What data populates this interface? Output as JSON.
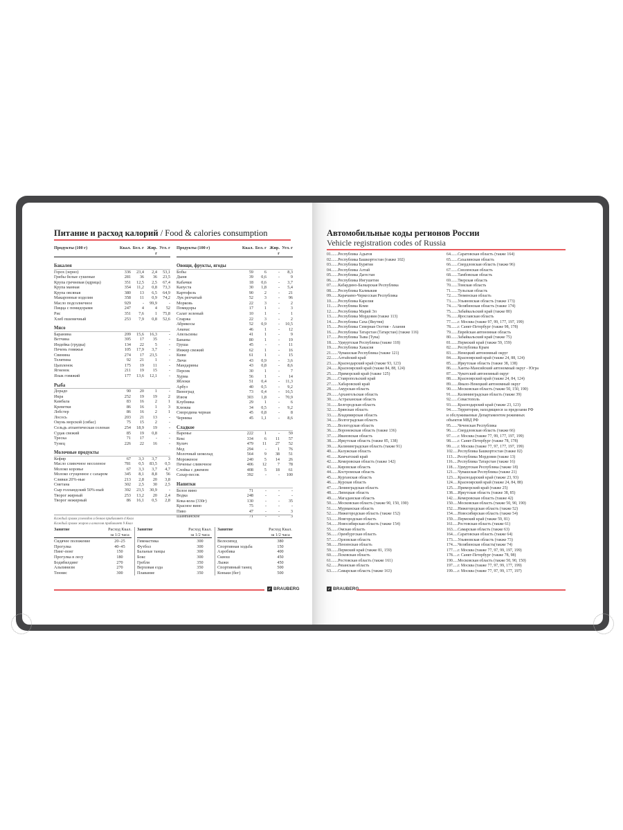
{
  "left_page": {
    "title": "Питание и расход калорий",
    "title_en": "/ Food & calories consumption",
    "columns": [
      "Продукты (100 г)",
      "Ккал.",
      "Бел. г",
      "Жир. г",
      "Угл. г"
    ],
    "col1": [
      {
        "section": "Бакалея",
        "rows": [
          [
            "Горох (зерно)",
            "336",
            "23,4",
            "2,4",
            "53,1"
          ],
          [
            "Грибы белые сушеные",
            "281",
            "36",
            "36",
            "23,5"
          ],
          [
            "Крупа гречневая (ядрица)",
            "351",
            "12,5",
            "2,5",
            "67,4"
          ],
          [
            "Крупа манная",
            "354",
            "11,2",
            "0,8",
            "73,3"
          ],
          [
            "Крупа овсяная",
            "380",
            "13",
            "6,5",
            "64,9"
          ],
          [
            "Макаронные изделия",
            "358",
            "11",
            "0,9",
            "74,2"
          ],
          [
            "Масло подсолнечное",
            "929",
            "-",
            "99,9",
            "-"
          ],
          [
            "Пицца с помидорами",
            "247",
            "4",
            "4",
            "52"
          ],
          [
            "Рис",
            "351",
            "7,6",
            "1",
            "75,8"
          ],
          [
            "Хлеб пшеничный",
            "253",
            "7,9",
            "0,8",
            "52,6"
          ]
        ]
      },
      {
        "section": "Мясо",
        "rows": [
          [
            "Баранина",
            "209",
            "15,6",
            "16,3",
            "-"
          ],
          [
            "Ветчина",
            "395",
            "17",
            "35",
            "-"
          ],
          [
            "Индейка (грудка)",
            "134",
            "22",
            "5",
            "-"
          ],
          [
            "Печень говяжья",
            "105",
            "17,9",
            "3,7",
            "-"
          ],
          [
            "Свинина",
            "274",
            "17",
            "23,5",
            "-"
          ],
          [
            "Телятина",
            "92",
            "21",
            "1",
            "-"
          ],
          [
            "Цыпленок",
            "175",
            "19",
            "11",
            "-"
          ],
          [
            "Ягненок",
            "211",
            "19",
            "15",
            "-"
          ],
          [
            "Язык говяжий",
            "177",
            "13,6",
            "12,1",
            "-"
          ]
        ]
      },
      {
        "section": "Рыба",
        "rows": [
          [
            "Дорадо",
            "90",
            "20",
            "1",
            "-"
          ],
          [
            "Икра",
            "252",
            "19",
            "19",
            "2"
          ],
          [
            "Камбала",
            "83",
            "16",
            "2",
            "1"
          ],
          [
            "Креветки",
            "86",
            "16",
            "1",
            "3"
          ],
          [
            "Лобстер",
            "86",
            "16",
            "2",
            "1"
          ],
          [
            "Лосось",
            "203",
            "21",
            "13",
            "-"
          ],
          [
            "Окунь морской (сибас)",
            "75",
            "15",
            "2",
            "-"
          ],
          [
            "Сельдь атлантическая соленая",
            "254",
            "18,9",
            "19",
            "-"
          ],
          [
            "Судак свежий",
            "85",
            "19",
            "0,8",
            "-"
          ],
          [
            "Треска",
            "71",
            "17",
            "-",
            "-"
          ],
          [
            "Тунец",
            "226",
            "22",
            "16",
            "-"
          ]
        ]
      },
      {
        "section": "Молочные продукты",
        "rows": [
          [
            "Кефир",
            "67",
            "3,3",
            "3,7",
            "3"
          ],
          [
            "Масло сливочное несоленое",
            "781",
            "0,5",
            "83,5",
            "0,5"
          ],
          [
            "Молоко коровье",
            "67",
            "3,3",
            "3,7",
            "4,7"
          ],
          [
            "Молоко сгущенное с сахаром",
            "345",
            "8,1",
            "8,8",
            "56"
          ],
          [
            "Сливки 20%-ные",
            "213",
            "2,8",
            "20",
            "3,8"
          ],
          [
            "Сметана",
            "302",
            "2,5",
            "30",
            "2,5"
          ],
          [
            "Сыр голландский 50%-ный",
            "392",
            "23,5",
            "30,9",
            "-"
          ],
          [
            "Творог жирный",
            "253",
            "13,2",
            "20",
            "2,4"
          ],
          [
            "Творог нежирный",
            "86",
            "16,1",
            "0,5",
            "2,8"
          ]
        ]
      }
    ],
    "col2": [
      {
        "section": "Овощи, фрукты, ягоды",
        "rows": [
          [
            "Бобы",
            "59",
            "6",
            "-",
            "8,3"
          ],
          [
            "Дыня",
            "39",
            "0,6",
            "-",
            "9"
          ],
          [
            "Кабачки",
            "18",
            "0,6",
            "-",
            "3,7"
          ],
          [
            "Капуста",
            "30",
            "1,8",
            "-",
            "5,4"
          ],
          [
            "Картофель",
            "90",
            "2",
            "-",
            "21"
          ],
          [
            "Лук репчатый",
            "52",
            "3",
            "-",
            "96"
          ],
          [
            "Морковь",
            "22",
            "3",
            "-",
            "2"
          ],
          [
            "Помидоры",
            "17",
            "1",
            "-",
            "3"
          ],
          [
            "Салат зеленый",
            "10",
            "1",
            "-",
            "1"
          ],
          [
            "Спаржа",
            "22",
            "3",
            "-",
            "2"
          ],
          [
            "Абрикосы",
            "52",
            "0,9",
            "-",
            "10,5"
          ],
          [
            "Ананас",
            "46",
            "1",
            "-",
            "12"
          ],
          [
            "Апельсины",
            "41",
            "1",
            "-",
            "9"
          ],
          [
            "Бананы",
            "80",
            "1",
            "-",
            "19"
          ],
          [
            "Груша",
            "45",
            "-",
            "-",
            "11"
          ],
          [
            "Инжир свежий",
            "62",
            "1",
            "-",
            "16"
          ],
          [
            "Киви",
            "61",
            "1",
            "-",
            "15"
          ],
          [
            "Личи",
            "43",
            "0,9",
            "-",
            "3,6"
          ],
          [
            "Мандарины",
            "43",
            "0,8",
            "-",
            "8,6"
          ],
          [
            "Персик",
            "30",
            "1",
            "-",
            "7"
          ],
          [
            "Хурма",
            "56",
            "1",
            "-",
            "14"
          ],
          [
            "Яблоки",
            "51",
            "0,4",
            "-",
            "11,3"
          ],
          [
            "Арбуз",
            "40",
            "0,5",
            "-",
            "9,2"
          ],
          [
            "Виноград",
            "73",
            "0,4",
            "-",
            "16,5"
          ],
          [
            "Изюм",
            "303",
            "1,8",
            "-",
            "70,9"
          ],
          [
            "Клубника",
            "29",
            "1",
            "-",
            "6"
          ],
          [
            "Клюква",
            "34",
            "0,5",
            "-",
            "9,2"
          ],
          [
            "Смородина черная",
            "45",
            "0,8",
            "-",
            "8"
          ],
          [
            "Черника",
            "45",
            "1,1",
            "-",
            "8,6"
          ]
        ]
      },
      {
        "section": "Сладкое",
        "rows": [
          [
            "Варенье",
            "222",
            "1",
            "-",
            "59"
          ],
          [
            "Кекс",
            "334",
            "6",
            "11",
            "57"
          ],
          [
            "Кулич",
            "479",
            "11",
            "27",
            "52"
          ],
          [
            "Мед",
            "294",
            "-",
            "1",
            "76"
          ],
          [
            "Молочный шоколад",
            "564",
            "9",
            "38",
            "51"
          ],
          [
            "Мороженое",
            "240",
            "5",
            "14",
            "26"
          ],
          [
            "Печенье сливочное",
            "406",
            "12",
            "7",
            "78"
          ],
          [
            "Слойка с джемом",
            "408",
            "5",
            "18",
            "61"
          ],
          [
            "Сахар-песок",
            "392",
            "-",
            "-",
            "100"
          ]
        ]
      },
      {
        "section": "Напитки",
        "rows": [
          [
            "Белое вино",
            "71",
            "-",
            "-",
            "-"
          ],
          [
            "Водка",
            "248",
            "-",
            "-",
            "-"
          ],
          [
            "Кока-кола (330г)",
            "130",
            "-",
            "-",
            "35"
          ],
          [
            "Красное вино",
            "75",
            "-",
            "-",
            "-"
          ],
          [
            "Пиво",
            "47",
            "-",
            "-",
            "3"
          ],
          [
            "Шампанское",
            "71",
            "-",
            "-",
            "3"
          ]
        ]
      }
    ],
    "notes": [
      "Каждый грамм углеводов и белков прибавляет 4 Ккал",
      "Каждый грамм жиров и алкоголя прибавляет 9 Ккал"
    ],
    "activity_header": {
      "name": "Занятие",
      "value": "Расход Ккал. за 1/2 часа"
    },
    "activities": [
      [
        [
          "Сидячее положение",
          "20–25"
        ],
        [
          "Прогулка",
          "40–45"
        ],
        [
          "Пинг-понг",
          "150"
        ],
        [
          "Прогулка в лесу",
          "180"
        ],
        [
          "Бодибилдинг",
          "270"
        ],
        [
          "Альпинизм",
          "270"
        ],
        [
          "Теннис",
          "300"
        ]
      ],
      [
        [
          "Гимнастика",
          "300"
        ],
        [
          "Футбол",
          "300"
        ],
        [
          "Бальные танцы",
          "300"
        ],
        [
          "Бокс",
          "300"
        ],
        [
          "Гребля",
          "350"
        ],
        [
          "Верховая езда",
          "350"
        ],
        [
          "Плавание",
          "350"
        ]
      ],
      [
        [
          "Велосипед",
          "380"
        ],
        [
          "Спортивная ходьба",
          "150"
        ],
        [
          "Аэробика",
          "400"
        ],
        [
          "Сквош",
          "450"
        ],
        [
          "Лыжи",
          "450"
        ],
        [
          "Спортивный танец",
          "500"
        ],
        [
          "Коньки (бег)",
          "500"
        ]
      ]
    ],
    "brand": "BRAUBERG"
  },
  "right_page": {
    "title": "Автомобильные коды регионов России",
    "subtitle": "Vehicle registration codes of Russia",
    "codes_col1": [
      "01.......Республика Адыгея",
      "02.......Республика Башкортостан (также 102)",
      "03.......Республика Бурятия",
      "04.......Республика Алтай",
      "05.......Республика Дагестан",
      "06.......Республика Ингушетия",
      "07.......Кабардино-Балкарская Республика",
      "08.......Республика Калмыкия",
      "09.......Карачаево-Черкесская Республика",
      "10.......Республика Карелия",
      "11.......Республика Коми",
      "12.......Республика Марий Эл",
      "13.......Республика Мордовия (также 113)",
      "14.......Республика Саха (Якутия)",
      "15.......Республика Северная Осетия - Алания",
      "16.......Республика Татарстан (Татарстан) (также 116)",
      "17.......Республика Тыва (Тува)",
      "18.......Удмуртская Республика (также 118)",
      "19.......Республика Хакасия",
      "21.......Чувашская Республика (также 121)",
      "22.......Алтайский край",
      "23.......Краснодарский край (также 93, 123)",
      "24.......Красноярский край (также 84, 88, 124)",
      "25.......Приморский край (также 125)",
      "26.......Ставропольский край",
      "27.......Хабаровский край",
      "28.......Амурская область",
      "29.......Архангельская область",
      "30.......Астраханская область",
      "31.......Белгородская область",
      "32.......Брянская область",
      "33.......Владимирская область",
      "34.......Волгоградская область",
      "35.......Вологодская область",
      "36.......Воронежская область (также 136)",
      "37.......Ивановская область",
      "38.......Иркутская область (также 85, 138)",
      "39.......Калининградская область (также 91)",
      "40.......Калужская область",
      "41.......Камчатский край",
      "42.......Кемеровская область (также 142)",
      "43.......Кировская область",
      "44.......Костромская область",
      "45.......Курганская область",
      "46.......Курская область",
      "47.......Ленинградская область",
      "48.......Липецкая область",
      "49.......Магаданская область",
      "50.......Московская область (также 90, 150, 190)",
      "51.......Мурманская область",
      "52.......Нижегородская область (также 152)",
      "53.......Новгородская область",
      "54.......Новосибирская область (также 154)",
      "55.......Омская область",
      "56.......Оренбургская область",
      "57.......Орловская область",
      "58.......Пензенская область",
      "59.......Пермский край (также 81, 159)",
      "60.......Псковская область",
      "61.......Ростовская область (также 161)",
      "62.......Рязанская область",
      "63.......Самарская область (также 163)"
    ],
    "codes_col2": [
      "64.......Саратовская область (также 164)",
      "65.......Сахалинская область",
      "66.......Свердловская область (также 96)",
      "67.......Смоленская область",
      "68.......Тамбовская область",
      "69.......Тверская область",
      "70.......Томская область",
      "71.......Тульская область",
      "72.......Тюменская область",
      "73.......Ульяновская область (также 173)",
      "74.......Челябинская область (также 174)",
      "75.......Забайкальский край (также 80)",
      "76.......Ярославская область",
      "77.......г. Москва (также 97, 99, 177, 197, 199)",
      "78.......г. Санкт-Петербург (также 98, 178)",
      "79.......Еврейская автономная область",
      "80.......Забайкальский край (также 75)",
      "81.......Пермский край (также 59, 159)",
      "82.......Республика Крым",
      "83.......Ненецкий автономный округ",
      "84.......Красноярский край (также 24, 88, 124)",
      "85.......Иркутская область (также 38, 138)",
      "86.......Ханты-Мансийский автономный округ - Югра",
      "87.......Чукотский автономный округ",
      "88.......Красноярский край (также 24, 84, 124)",
      "89.......Ямало-Ненецкий автономный округ",
      "90.......Московская область (также 50, 150, 190)",
      "91.......Калининградская область (также 39)",
      "92.......Севастополь",
      "93.......Краснодарский край (также 23, 123)",
      "94.......Территории, находящиеся за пределами РФ",
      "и обслуживаемые Департаментом режимных",
      "объектов МВД РФ",
      "95.......Чеченская Республика",
      "96.......Свердловская область (также 66)",
      "97.......г. Москва (также 77, 99, 177, 197, 199)",
      "98.......г. Санкт-Петербург (также 78, 178)",
      "99.......г. Москва (также 77, 97, 177, 197, 199)",
      "102.....Республика Башкортостан (также 02)",
      "113.....Республика Мордовия (также 13)",
      "116.....Республика Татарстан (также 16)",
      "118.....Удмуртская Республика (также 18)",
      "121.....Чувашская Республика (также 21)",
      "123.....Краснодарский край (также 23, 93)",
      "124.....Красноярский край (также 24, 84, 88)",
      "125.....Приморский край (также 25)",
      "138.....Иркутская область (также 38, 85)",
      "142.....Кемеровская область (также 42)",
      "150.....Московская область (также 50, 90, 190)",
      "152.....Нижегородская область (также 52)",
      "154.....Новосибирская область (также 54)",
      "159.....Пермский край (также 59, 81)",
      "161.....Ростовская область (также 61)",
      "163.....Самарская область (также 63)",
      "164.....Саратовская область (также 64)",
      "173.....Ульяновская область (также 73)",
      "174.....Челябинская область(также 74)",
      "177.....г. Москва (также 77, 97, 99, 197, 199)",
      "178.....г. Санкт-Петербург (также 78, 98)",
      "190.....Московская область (также 50, 90, 150)",
      "197.....г. Москва (также 77, 97, 99, 177, 199)",
      "199.....г. Москва (также 77, 97, 99, 177, 197)"
    ],
    "brand": "BRAUBERG"
  },
  "colors": {
    "cover": "#454547",
    "accent_line": "#e8595c"
  }
}
